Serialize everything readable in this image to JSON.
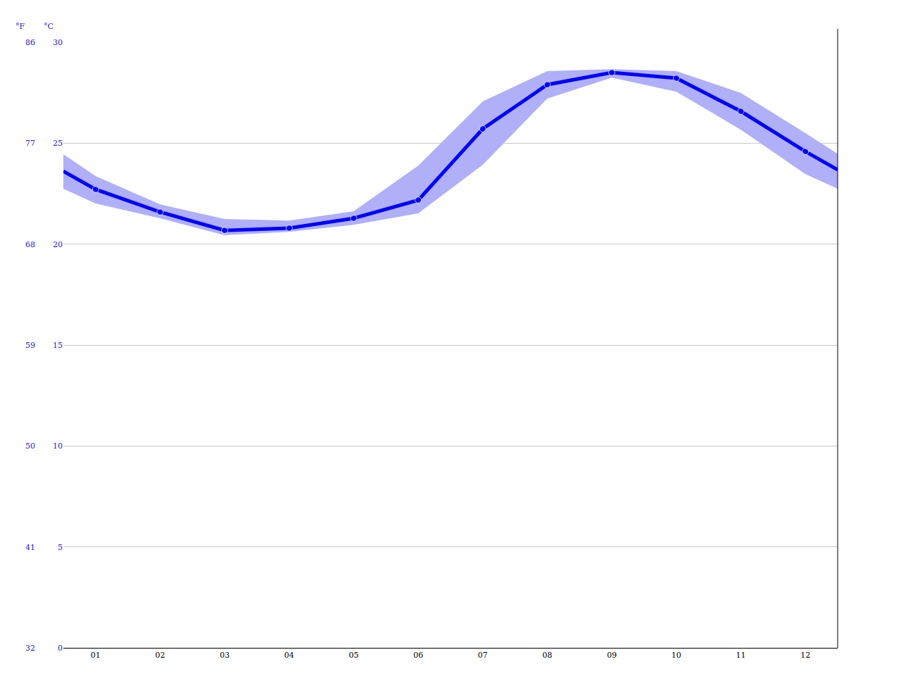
{
  "chart_data": {
    "type": "line",
    "x": [
      0.5,
      1,
      2,
      3,
      4,
      5,
      6,
      7,
      8,
      9,
      10,
      11,
      12,
      12.5
    ],
    "xlim": [
      0.5,
      12.5
    ],
    "xticks": [
      {
        "value": 1,
        "label": "01"
      },
      {
        "value": 2,
        "label": "02"
      },
      {
        "value": 3,
        "label": "03"
      },
      {
        "value": 4,
        "label": "04"
      },
      {
        "value": 5,
        "label": "05"
      },
      {
        "value": 6,
        "label": "06"
      },
      {
        "value": 7,
        "label": "07"
      },
      {
        "value": 8,
        "label": "08"
      },
      {
        "value": 9,
        "label": "09"
      },
      {
        "value": 10,
        "label": "10"
      },
      {
        "value": 11,
        "label": "11"
      },
      {
        "value": 12,
        "label": "12"
      }
    ],
    "ylabel": "°C",
    "ylim": [
      0,
      30
    ],
    "yticks": [
      0,
      5,
      10,
      15,
      20,
      25,
      30
    ],
    "y2label": "°F",
    "y2lim": [
      32,
      86
    ],
    "y2ticks": [
      32,
      41,
      50,
      59,
      68,
      77,
      86
    ],
    "grid": true,
    "series": [
      {
        "color": "#0000ff",
        "marker": "circle",
        "line_style": "solid",
        "values": [
          23.61,
          22.71,
          21.59,
          20.68,
          20.79,
          21.28,
          22.18,
          25.71,
          27.9,
          28.5,
          28.22,
          26.58,
          24.59,
          23.68
        ]
      }
    ],
    "band": {
      "color": "#b0b0f8",
      "low": [
        22.74,
        22.01,
        21.28,
        20.44,
        20.61,
        20.96,
        21.52,
        23.93,
        27.21,
        28.25,
        27.55,
        25.67,
        23.47,
        22.74
      ],
      "high": [
        24.45,
        23.37,
        21.97,
        21.24,
        21.17,
        21.63,
        23.89,
        27.07,
        28.57,
        28.67,
        28.57,
        27.49,
        25.5,
        24.47
      ]
    }
  }
}
